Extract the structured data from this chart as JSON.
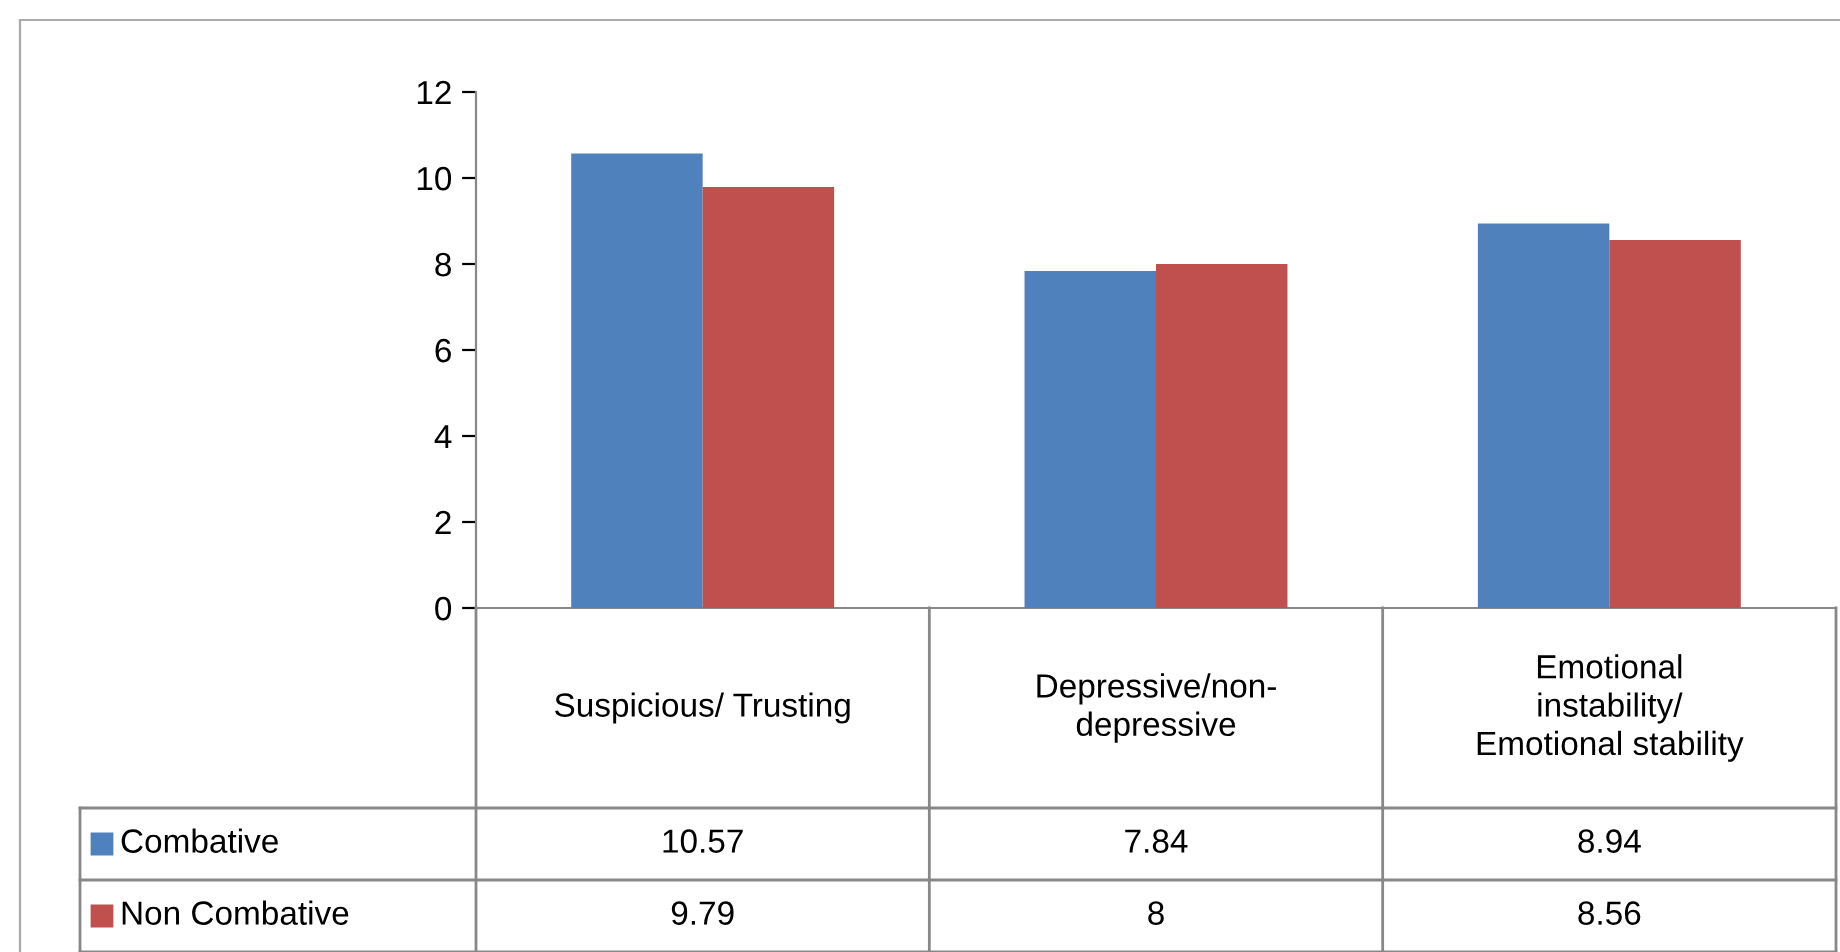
{
  "chart_data": {
    "type": "bar",
    "categories": [
      "Suspicious/ Trusting",
      "Depressive/non-\ndepressive",
      "Emotional\ninstability/\nEmotional stability"
    ],
    "series": [
      {
        "name": "Combative",
        "color": "#4f81bd",
        "values": [
          10.57,
          7.84,
          8.94
        ]
      },
      {
        "name": "Non Combative",
        "color": "#c0504d",
        "values": [
          9.79,
          8,
          8.56
        ]
      }
    ],
    "ylim": [
      0,
      12
    ],
    "yticks": [
      0,
      2,
      4,
      6,
      8,
      10,
      12
    ],
    "grid": false,
    "legend": "left",
    "data_labels": true
  }
}
